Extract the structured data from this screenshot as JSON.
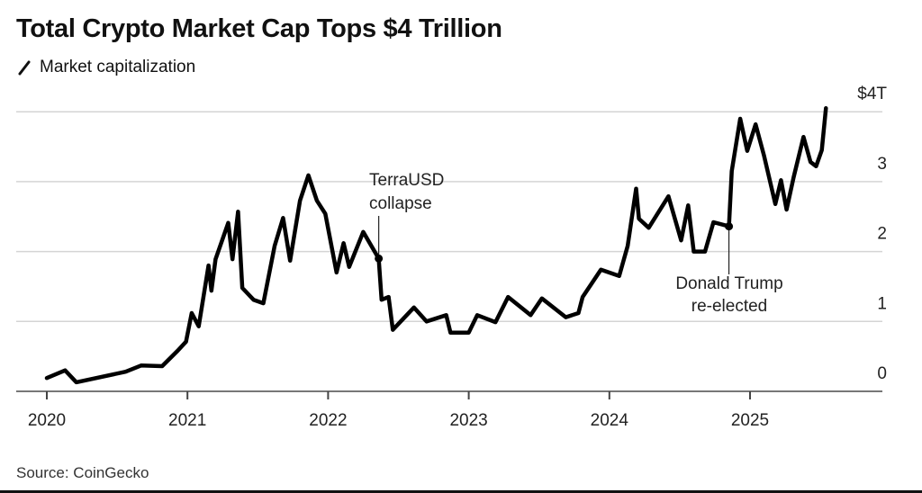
{
  "chart_data": {
    "type": "line",
    "title": "Total Crypto Market Cap Tops $4 Trillion",
    "legend": [
      {
        "name": "Market capitalization",
        "icon": "slash-line-icon"
      }
    ],
    "xlabel": "",
    "ylabel": "",
    "x_ticks": [
      2020,
      2021,
      2022,
      2023,
      2024,
      2025
    ],
    "x_tick_labels": [
      "2020",
      "2021",
      "2022",
      "2023",
      "2024",
      "2025"
    ],
    "y_ticks": [
      0,
      1,
      2,
      3,
      4
    ],
    "y_tick_labels": [
      "0",
      "1",
      "2",
      "3",
      "$4T"
    ],
    "xlim": [
      2019.95,
      2025.85
    ],
    "ylim": [
      0,
      4
    ],
    "grid": true,
    "y_axis_position": "right",
    "series": [
      {
        "name": "Market capitalization",
        "unit": "trillion USD",
        "x": [
          2020.0,
          2020.13,
          2020.21,
          2020.56,
          2020.67,
          2020.82,
          2020.93,
          2020.99,
          2021.03,
          2021.08,
          2021.15,
          2021.17,
          2021.2,
          2021.29,
          2021.32,
          2021.36,
          2021.39,
          2021.47,
          2021.54,
          2021.62,
          2021.68,
          2021.73,
          2021.8,
          2021.86,
          2021.92,
          2021.98,
          2022.06,
          2022.11,
          2022.15,
          2022.25,
          2022.36,
          2022.38,
          2022.43,
          2022.46,
          2022.61,
          2022.7,
          2022.84,
          2022.87,
          2023.0,
          2023.06,
          2023.19,
          2023.28,
          2023.44,
          2023.52,
          2023.69,
          2023.78,
          2023.81,
          2023.94,
          2024.07,
          2024.13,
          2024.19,
          2024.21,
          2024.28,
          2024.42,
          2024.51,
          2024.56,
          2024.6,
          2024.68,
          2024.74,
          2024.85,
          2024.87,
          2024.93,
          2024.98,
          2025.04,
          2025.1,
          2025.18,
          2025.22,
          2025.26,
          2025.31,
          2025.38,
          2025.43,
          2025.47,
          2025.51,
          2025.54
        ],
        "y": [
          0.19,
          0.3,
          0.13,
          0.28,
          0.37,
          0.36,
          0.58,
          0.71,
          1.12,
          0.93,
          1.8,
          1.44,
          1.89,
          2.41,
          1.89,
          2.57,
          1.48,
          1.31,
          1.26,
          2.08,
          2.48,
          1.87,
          2.73,
          3.09,
          2.73,
          2.54,
          1.7,
          2.12,
          1.78,
          2.28,
          1.9,
          1.31,
          1.35,
          0.88,
          1.2,
          1.0,
          1.09,
          0.84,
          0.84,
          1.09,
          0.99,
          1.35,
          1.09,
          1.33,
          1.06,
          1.12,
          1.35,
          1.74,
          1.65,
          2.08,
          2.9,
          2.47,
          2.34,
          2.79,
          2.16,
          2.66,
          2.0,
          2.0,
          2.42,
          2.36,
          3.15,
          3.9,
          3.44,
          3.82,
          3.37,
          2.68,
          3.02,
          2.6,
          3.06,
          3.64,
          3.28,
          3.22,
          3.45,
          4.05
        ]
      }
    ],
    "annotations": [
      {
        "lines": [
          "TerraUSD",
          "collapse"
        ],
        "x": 2022.36,
        "y": 1.9
      },
      {
        "lines": [
          "Donald Trump",
          "re-elected"
        ],
        "x": 2024.85,
        "y": 2.36
      }
    ],
    "source": "Source: CoinGecko"
  }
}
